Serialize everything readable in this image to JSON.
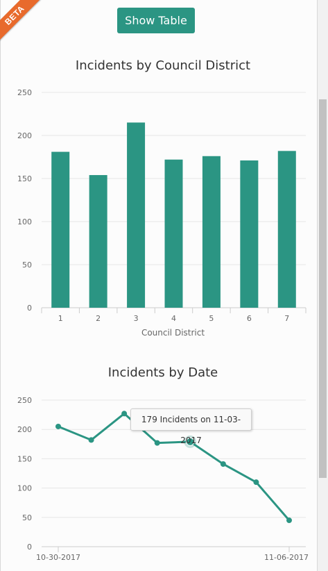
{
  "badge": {
    "label": "BETA",
    "color": "#e86a2c"
  },
  "toolbar": {
    "show_table_label": "Show Table"
  },
  "colors": {
    "accent": "#2b9583"
  },
  "tooltip": {
    "text": "179 Incidents on 11-03-2017"
  },
  "chart_data": [
    {
      "type": "bar",
      "title": "Incidents by Council District",
      "xlabel": "Council District",
      "ylabel": "",
      "categories": [
        "1",
        "2",
        "3",
        "4",
        "5",
        "6",
        "7"
      ],
      "values": [
        181,
        154,
        215,
        172,
        176,
        171,
        182
      ],
      "yticks": [
        "0",
        "50",
        "100",
        "150",
        "200",
        "250"
      ],
      "ylim": [
        0,
        250
      ],
      "grid": true
    },
    {
      "type": "line",
      "title": "Incidents by Date",
      "xlabel": "",
      "ylabel": "",
      "x": [
        "10-30-2017",
        "10-31-2017",
        "11-01-2017",
        "11-02-2017",
        "11-03-2017",
        "11-04-2017",
        "11-05-2017",
        "11-06-2017"
      ],
      "values": [
        205,
        182,
        227,
        177,
        179,
        141,
        110,
        45
      ],
      "xticks": [
        "10-30-2017",
        "11-06-2017"
      ],
      "yticks": [
        "0",
        "50",
        "100",
        "150",
        "200",
        "250"
      ],
      "ylim": [
        0,
        250
      ],
      "highlighted_index": 4,
      "grid": true
    }
  ]
}
